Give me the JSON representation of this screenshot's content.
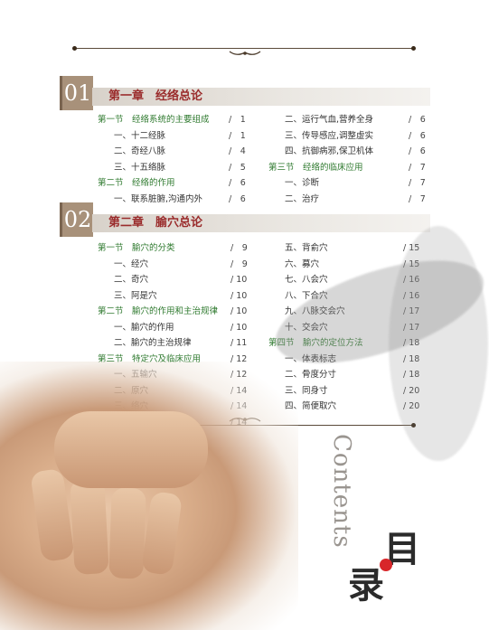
{
  "chapters": [
    {
      "number": "01",
      "title": "第一章　经络总论",
      "left": [
        {
          "text": "第一节　经络系统的主要组成",
          "page": "/　1",
          "type": "section"
        },
        {
          "text": "一、十二经脉",
          "page": "/　1",
          "type": "item"
        },
        {
          "text": "二、奇经八脉",
          "page": "/　4",
          "type": "item"
        },
        {
          "text": "三、十五络脉",
          "page": "/　5",
          "type": "item"
        },
        {
          "text": "第二节　经络的作用",
          "page": "/　6",
          "type": "section"
        },
        {
          "text": "一、联系脏腑,沟通内外",
          "page": "/　6",
          "type": "item"
        }
      ],
      "right": [
        {
          "text": "二、运行气血,营养全身",
          "page": "/　6",
          "type": "item"
        },
        {
          "text": "三、传导感应,调整虚实",
          "page": "/　6",
          "type": "item"
        },
        {
          "text": "四、抗御病邪,保卫机体",
          "page": "/　6",
          "type": "item"
        },
        {
          "text": "第三节　经络的临床应用",
          "page": "/　7",
          "type": "section"
        },
        {
          "text": "一、诊断",
          "page": "/　7",
          "type": "item"
        },
        {
          "text": "二、治疗",
          "page": "/　7",
          "type": "item"
        }
      ]
    },
    {
      "number": "02",
      "title": "第二章　腧穴总论",
      "left": [
        {
          "text": "第一节　腧穴的分类",
          "page": "/　9",
          "type": "section"
        },
        {
          "text": "一、经穴",
          "page": "/　9",
          "type": "item"
        },
        {
          "text": "二、奇穴",
          "page": "/ 10",
          "type": "item"
        },
        {
          "text": "三、阿是穴",
          "page": "/ 10",
          "type": "item"
        },
        {
          "text": "第二节　腧穴的作用和主治规律",
          "page": "/ 10",
          "type": "section"
        },
        {
          "text": "一、腧穴的作用",
          "page": "/ 10",
          "type": "item"
        },
        {
          "text": "二、腧穴的主治规律",
          "page": "/ 11",
          "type": "item"
        },
        {
          "text": "第三节　特定穴及临床应用",
          "page": "/ 12",
          "type": "section"
        },
        {
          "text": "一、五输穴",
          "page": "/ 12",
          "type": "item"
        },
        {
          "text": "二、原穴",
          "page": "/ 14",
          "type": "item"
        },
        {
          "text": "三、络穴",
          "page": "/ 14",
          "type": "item"
        },
        {
          "text": "四、郄穴",
          "page": "/ 14",
          "type": "item"
        }
      ],
      "right": [
        {
          "text": "五、背俞穴",
          "page": "/ 15",
          "type": "item"
        },
        {
          "text": "六、募穴",
          "page": "/ 15",
          "type": "item"
        },
        {
          "text": "七、八会穴",
          "page": "/ 16",
          "type": "item"
        },
        {
          "text": "八、下合穴",
          "page": "/ 16",
          "type": "item"
        },
        {
          "text": "九、八脉交会穴",
          "page": "/ 17",
          "type": "item"
        },
        {
          "text": "十、交会穴",
          "page": "/ 17",
          "type": "item"
        },
        {
          "text": "第四节　腧穴的定位方法",
          "page": "/ 18",
          "type": "section"
        },
        {
          "text": "一、体表标志",
          "page": "/ 18",
          "type": "item"
        },
        {
          "text": "二、骨度分寸",
          "page": "/ 18",
          "type": "item"
        },
        {
          "text": "三、同身寸",
          "page": "/ 20",
          "type": "item"
        },
        {
          "text": "四、简便取穴",
          "page": "/ 20",
          "type": "item"
        }
      ]
    }
  ],
  "side_title": {
    "english": "Contents",
    "chinese_top": "目",
    "chinese_bottom": "录"
  },
  "colors": {
    "section": "#2f7a2f",
    "chapter_title": "#9a2b2b",
    "chapter_num_bg": "#a8917a",
    "accent_dot": "#d8262a"
  }
}
